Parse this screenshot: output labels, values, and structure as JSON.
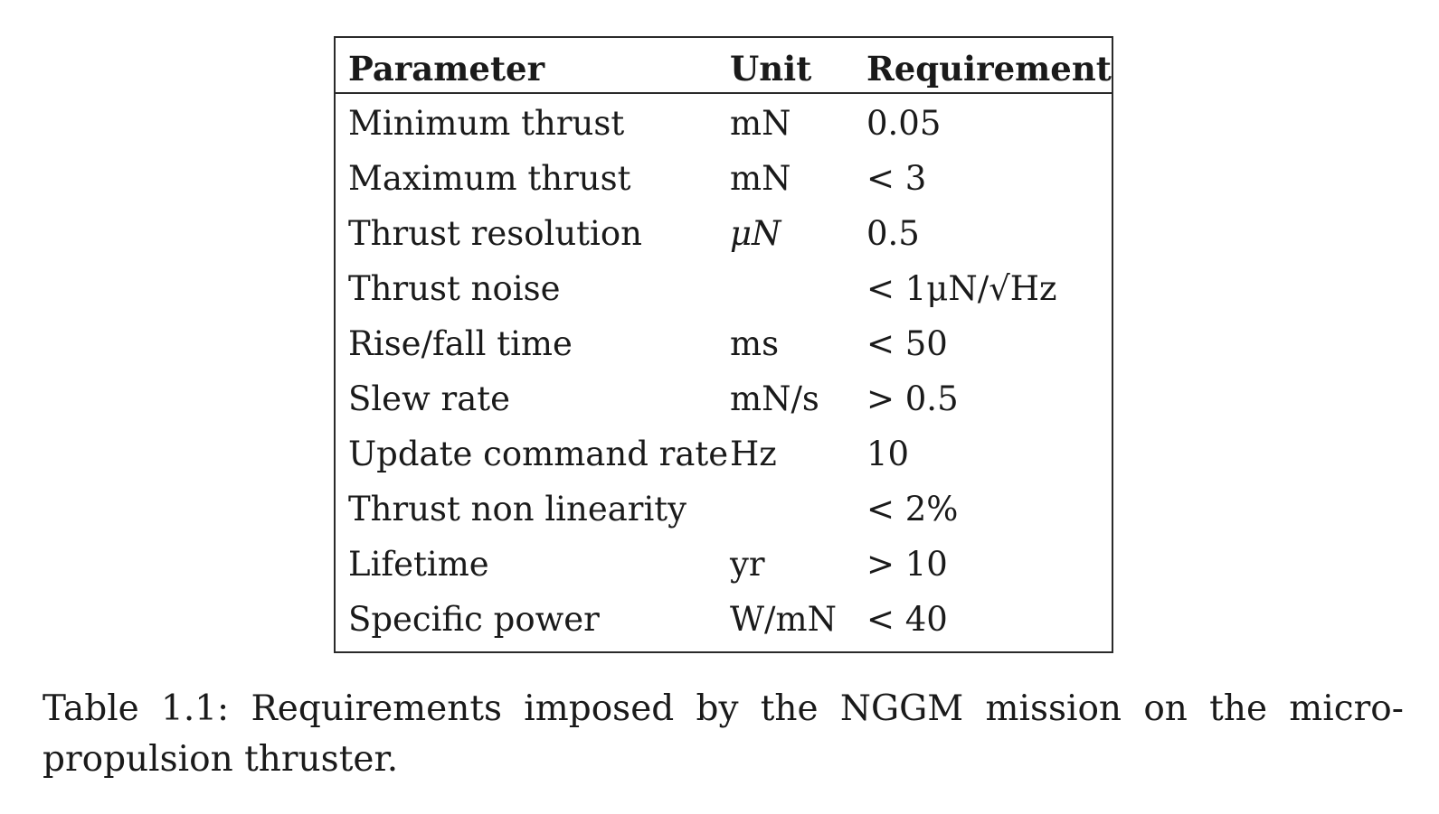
{
  "table": {
    "headers": [
      "Parameter",
      "Unit",
      "Requirement"
    ],
    "rows": [
      {
        "parameter": "Minimum thrust",
        "unit": "mN",
        "requirement": "0.05"
      },
      {
        "parameter": "Maximum thrust",
        "unit": "mN",
        "requirement": "< 3"
      },
      {
        "parameter": "Thrust resolution",
        "unit": "μN",
        "requirement": "0.5"
      },
      {
        "parameter": "Thrust noise",
        "unit": "",
        "requirement": "< 1μN/√Hz"
      },
      {
        "parameter": "Rise/fall time",
        "unit": "ms",
        "requirement": "< 50"
      },
      {
        "parameter": "Slew rate",
        "unit": "mN/s",
        "requirement": "> 0.5"
      },
      {
        "parameter": "Update command rate",
        "unit": "Hz",
        "requirement": "10"
      },
      {
        "parameter": "Thrust non linearity",
        "unit": "",
        "requirement": "< 2%"
      },
      {
        "parameter": "Lifetime",
        "unit": "yr",
        "requirement": "> 10"
      },
      {
        "parameter": "Specific power",
        "unit": "W/mN",
        "requirement": "< 40"
      }
    ]
  },
  "caption": {
    "line1_words": [
      "Table",
      "1.1:",
      "Requirements",
      "imposed",
      "by",
      "the",
      "NGGM",
      "mission",
      "on",
      "the",
      "micro-"
    ],
    "line2": "propulsion thruster."
  }
}
